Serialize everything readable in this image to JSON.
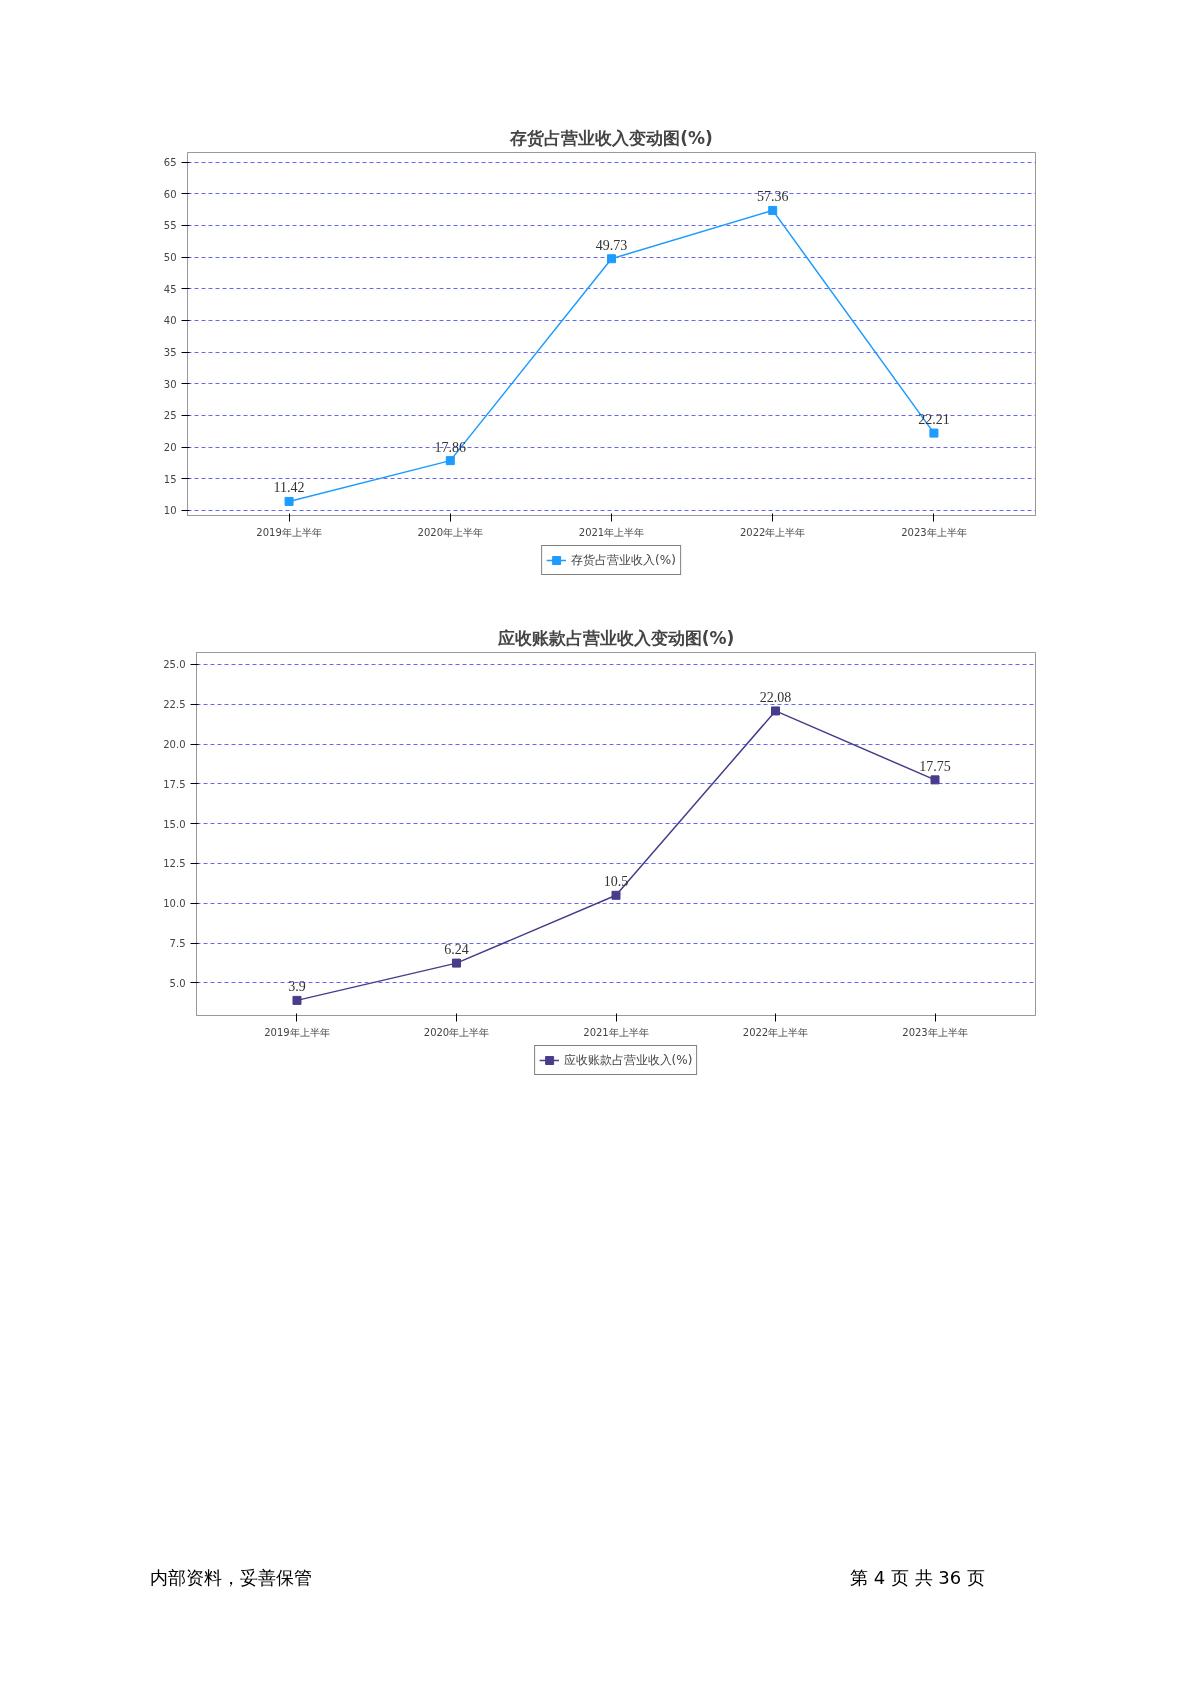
{
  "chart_data": [
    {
      "type": "line",
      "title": "存货占营业收入变动图(%)",
      "categories": [
        "2019年上半年",
        "2020年上半年",
        "2021年上半年",
        "2022年上半年",
        "2023年上半年"
      ],
      "series": [
        {
          "name": "存货占营业收入(%)",
          "color": "#1e9bff",
          "values": [
            11.42,
            17.86,
            49.73,
            57.36,
            22.21
          ]
        }
      ],
      "ylim": [
        9.2,
        66.5
      ],
      "yticks": [
        10,
        15,
        20,
        25,
        30,
        35,
        40,
        45,
        50,
        55,
        60,
        65
      ],
      "grid": "y",
      "legend": "bottom",
      "marker": "square",
      "line_style": "solid",
      "data_labels": true
    },
    {
      "type": "line",
      "title": "应收账款占营业收入变动图(%)",
      "categories": [
        "2019年上半年",
        "2020年上半年",
        "2021年上半年",
        "2022年上半年",
        "2023年上半年"
      ],
      "series": [
        {
          "name": "应收账款占营业收入(%)",
          "color": "#483d8b",
          "values": [
            3.9,
            6.24,
            10.5,
            22.08,
            17.75
          ]
        }
      ],
      "ylim": [
        2.95,
        25.75
      ],
      "yticks": [
        {
          "value": 5,
          "label": "5.0"
        },
        {
          "value": 7.5,
          "label": "7.5"
        },
        {
          "value": 10,
          "label": "10.0"
        },
        {
          "value": 12.5,
          "label": "12.5"
        },
        {
          "value": 15,
          "label": "15.0"
        },
        {
          "value": 17.5,
          "label": "17.5"
        },
        {
          "value": 20,
          "label": "20.0"
        },
        {
          "value": 22.5,
          "label": "22.5"
        },
        {
          "value": 25,
          "label": "25.0"
        }
      ],
      "grid": "y",
      "legend": "bottom",
      "marker": "square",
      "line_style": "solid",
      "data_labels": true,
      "annotations": [
        "内部资料，妥善保管",
        "第 4 页  共 36 页"
      ]
    }
  ]
}
